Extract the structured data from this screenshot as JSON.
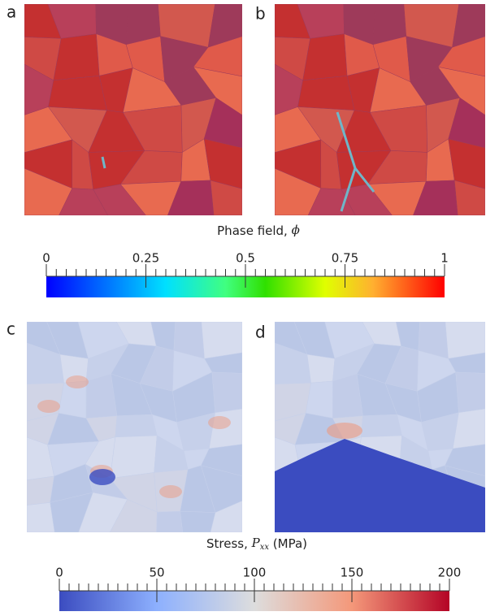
{
  "panels": [
    {
      "label": "a"
    },
    {
      "label": "b"
    },
    {
      "label": "c"
    },
    {
      "label": "d"
    }
  ],
  "colorbars": [
    {
      "title": {
        "prefix": "Phase field, ",
        "symbol": "ϕ"
      },
      "range": [
        0,
        1
      ],
      "ticks": [
        0,
        0.25,
        0.5,
        0.75,
        1
      ]
    },
    {
      "title": {
        "prefix": "Stress, ",
        "symbol": "P",
        "subscript": "xx",
        "suffix": " (MPa)"
      },
      "range": [
        0,
        200
      ],
      "ticks": [
        0,
        50,
        100,
        150,
        200
      ]
    }
  ]
}
